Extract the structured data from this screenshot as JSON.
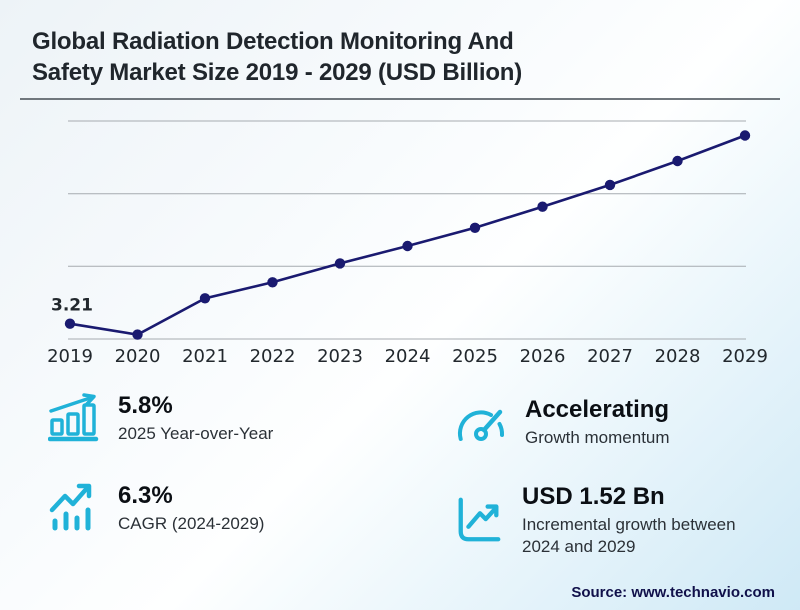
{
  "title": {
    "line1": "Global Radiation Detection Monitoring And",
    "line2": "Safety Market Size 2019 - 2029 (USD Billion)"
  },
  "colors": {
    "accent": "#20b2d8",
    "line": "#1a1a70",
    "grid": "#a6abb0",
    "axis_text": "#22282d",
    "title_text": "#20262c",
    "source_text": "#10104a"
  },
  "chart_data": {
    "type": "line",
    "title": "Global Radiation Detection Monitoring And Safety Market Size 2019 - 2029 (USD Billion)",
    "x": [
      "2019",
      "2020",
      "2021",
      "2022",
      "2023",
      "2024",
      "2025",
      "2026",
      "2027",
      "2028",
      "2029"
    ],
    "series": [
      {
        "name": "Market size (USD Billion)",
        "values": [
          3.21,
          3.06,
          3.56,
          3.78,
          4.04,
          4.28,
          4.53,
          4.82,
          5.12,
          5.45,
          5.8
        ]
      }
    ],
    "point_labels": [
      {
        "x": "2019",
        "label": "3.21"
      }
    ],
    "ylim": [
      3,
      6
    ],
    "gridlines": [
      3,
      4,
      5,
      6
    ],
    "grid": "horizontal-only",
    "legend": "none",
    "line_color": "#1a1a70",
    "marker": "filled-circle",
    "y_tick_labels_visible": false
  },
  "stats": [
    {
      "icon": "bar-chart-rising-icon",
      "value": "5.8%",
      "label": "2025 Year-over-Year"
    },
    {
      "icon": "trend-bars-icon",
      "value": "6.3%",
      "label": "CAGR (2024-2029)"
    },
    {
      "icon": "gauge-icon",
      "value": "Accelerating",
      "label": "Growth momentum"
    },
    {
      "icon": "chart-growth-icon",
      "value": "USD 1.52 Bn",
      "label": "Incremental growth between 2024 and 2029"
    }
  ],
  "source": "Source: www.technavio.com"
}
